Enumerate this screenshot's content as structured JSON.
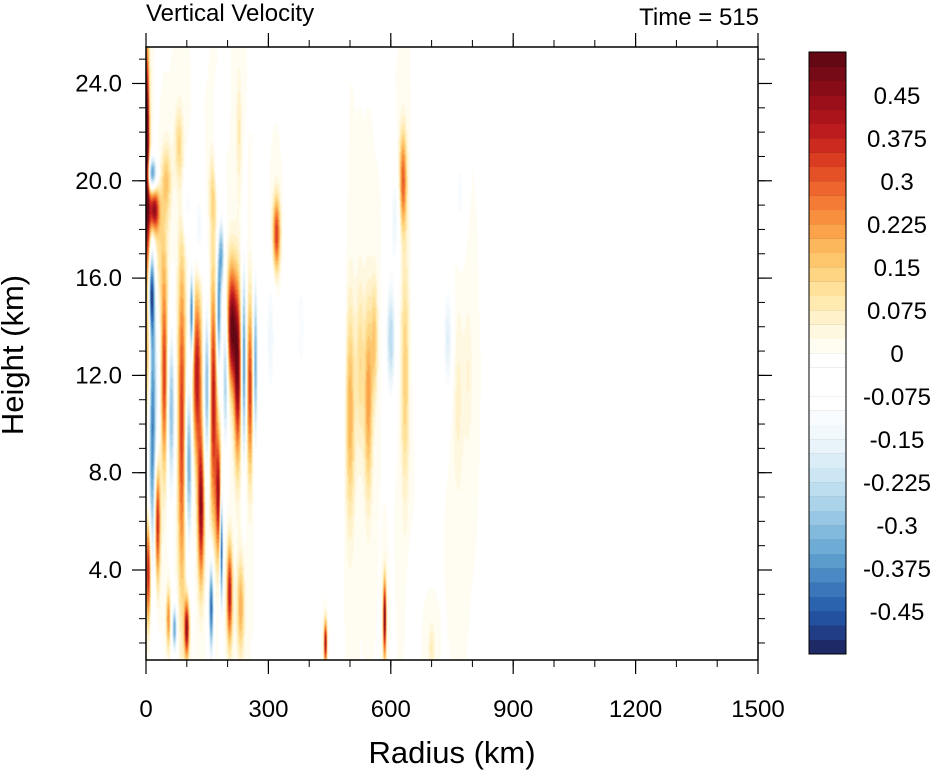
{
  "chart_data": {
    "type": "heatmap",
    "title": "Vertical Velocity",
    "subtitle": "Time = 515",
    "xlabel": "Radius (km)",
    "ylabel": "Height (km)",
    "xlim": [
      0,
      1500
    ],
    "ylim": [
      0.3,
      25.5
    ],
    "x_ticks": [
      0,
      300,
      600,
      900,
      1200,
      1500
    ],
    "x_tick_labels": [
      "0",
      "300",
      "600",
      "900",
      "1200",
      "1500"
    ],
    "x_minor_step": 100,
    "y_ticks": [
      4,
      8,
      12,
      16,
      20,
      24
    ],
    "y_tick_labels": [
      "4.0",
      "8.0",
      "12.0",
      "16.0",
      "20.0",
      "24.0"
    ],
    "y_minor_step": 1,
    "colorbar": {
      "levels": [
        -0.525,
        -0.5,
        -0.475,
        -0.45,
        -0.425,
        -0.4,
        -0.375,
        -0.35,
        -0.325,
        -0.3,
        -0.275,
        -0.25,
        -0.225,
        -0.2,
        -0.175,
        -0.15,
        -0.125,
        -0.1,
        -0.075,
        -0.05,
        -0.025,
        0,
        0.025,
        0.05,
        0.075,
        0.1,
        0.125,
        0.15,
        0.175,
        0.2,
        0.225,
        0.25,
        0.275,
        0.3,
        0.325,
        0.35,
        0.375,
        0.4,
        0.425,
        0.45,
        0.475,
        0.5,
        0.525
      ],
      "labels": [
        "0.45",
        "0.375",
        "0.3",
        "0.225",
        "0.15",
        "0.075",
        "0",
        "-0.075",
        "-0.15",
        "-0.225",
        "-0.3",
        "-0.375",
        "-0.45"
      ],
      "label_values": [
        0.45,
        0.375,
        0.3,
        0.225,
        0.15,
        0.075,
        0,
        -0.075,
        -0.15,
        -0.225,
        -0.3,
        -0.375,
        -0.45
      ],
      "colors": [
        "#1e2a66",
        "#203d86",
        "#2351a0",
        "#2c63ae",
        "#3a76b9",
        "#4a89c3",
        "#5b9ccd",
        "#6eacd6",
        "#82badd",
        "#97c7e4",
        "#abd3ea",
        "#bddeef",
        "#cde6f3",
        "#dbeef7",
        "#e8f4fa",
        "#f2f9fc",
        "#f8fcfe",
        "#ffffff",
        "#ffffff",
        "#ffffff",
        "#ffffff",
        "#fffdf2",
        "#fff8e0",
        "#fff2ca",
        "#ffeab1",
        "#ffe199",
        "#fed583",
        "#fdc66d",
        "#fcb65b",
        "#fba34b",
        "#f88f3e",
        "#f47b35",
        "#ee662d",
        "#e45126",
        "#d93c21",
        "#cc2a1f",
        "#bd1c1e",
        "#ac141c",
        "#9a0f1a",
        "#880c18",
        "#760a16",
        "#640814"
      ]
    },
    "features": [
      {
        "r": 5,
        "z": 14.0,
        "w": 0.5,
        "rw": 8,
        "zh": 8.0
      },
      {
        "r": 12,
        "z": 10.0,
        "w": -0.5,
        "rw": 14,
        "zh": 6.5
      },
      {
        "r": 12,
        "z": 15.5,
        "w": -0.45,
        "rw": 9,
        "zh": 1.8
      },
      {
        "r": 6,
        "z": 4.0,
        "w": 0.45,
        "rw": 7,
        "zh": 2.2
      },
      {
        "r": 3,
        "z": 22.0,
        "w": 0.45,
        "rw": 4,
        "zh": 3.5
      },
      {
        "r": 14,
        "z": 20.3,
        "w": -0.4,
        "rw": 12,
        "zh": 0.7
      },
      {
        "r": 20,
        "z": 18.8,
        "w": 0.45,
        "rw": 12,
        "zh": 0.9
      },
      {
        "r": 30,
        "z": 17.0,
        "w": 0.12,
        "rw": 22,
        "zh": 2.5
      },
      {
        "r": 28,
        "z": 6.0,
        "w": 0.45,
        "rw": 7,
        "zh": 2.5
      },
      {
        "r": 45,
        "z": 12.0,
        "w": 0.35,
        "rw": 8,
        "zh": 4.0
      },
      {
        "r": 62,
        "z": 10.5,
        "w": -0.3,
        "rw": 9,
        "zh": 3.5
      },
      {
        "r": 88,
        "z": 10.0,
        "w": 0.35,
        "rw": 10,
        "zh": 7.0
      },
      {
        "r": 105,
        "z": 8.5,
        "w": -0.35,
        "rw": 9,
        "zh": 3.5
      },
      {
        "r": 112,
        "z": 14.5,
        "w": -0.45,
        "rw": 5,
        "zh": 1.8
      },
      {
        "r": 125,
        "z": 12.0,
        "w": 0.4,
        "rw": 12,
        "zh": 3.5
      },
      {
        "r": 135,
        "z": 6.5,
        "w": 0.45,
        "rw": 8,
        "zh": 3.0
      },
      {
        "r": 150,
        "z": 11.5,
        "w": -0.35,
        "rw": 8,
        "zh": 3.5
      },
      {
        "r": 165,
        "z": 11.0,
        "w": 0.4,
        "rw": 10,
        "zh": 5.0
      },
      {
        "r": 178,
        "z": 14.5,
        "w": -0.4,
        "rw": 6,
        "zh": 2.5
      },
      {
        "r": 185,
        "z": 5.0,
        "w": -0.5,
        "rw": 4,
        "zh": 2.5
      },
      {
        "r": 178,
        "z": 7.0,
        "w": 0.4,
        "rw": 7,
        "zh": 2.5
      },
      {
        "r": 195,
        "z": 12.0,
        "w": -0.3,
        "rw": 7,
        "zh": 3.0
      },
      {
        "r": 210,
        "z": 14.0,
        "w": 0.5,
        "rw": 12,
        "zh": 2.5
      },
      {
        "r": 225,
        "z": 12.0,
        "w": 0.45,
        "rw": 9,
        "zh": 3.5
      },
      {
        "r": 240,
        "z": 12.5,
        "w": -0.4,
        "rw": 6,
        "zh": 4.0
      },
      {
        "r": 255,
        "z": 11.5,
        "w": 0.35,
        "rw": 8,
        "zh": 3.5
      },
      {
        "r": 268,
        "z": 12.5,
        "w": -0.35,
        "rw": 6,
        "zh": 3.5
      },
      {
        "r": 160,
        "z": 2.5,
        "w": -0.45,
        "rw": 6,
        "zh": 2.0
      },
      {
        "r": 205,
        "z": 3.0,
        "w": 0.4,
        "rw": 7,
        "zh": 2.0
      },
      {
        "r": 232,
        "z": 2.5,
        "w": 0.2,
        "rw": 9,
        "zh": 2.0
      },
      {
        "r": 100,
        "z": 1.6,
        "w": 0.45,
        "rw": 6,
        "zh": 1.2
      },
      {
        "r": 70,
        "z": 1.6,
        "w": -0.35,
        "rw": 6,
        "zh": 1.0
      },
      {
        "r": 55,
        "z": 2.0,
        "w": 0.25,
        "rw": 5,
        "zh": 1.2
      },
      {
        "r": 50,
        "z": 20.0,
        "w": 0.15,
        "rw": 12,
        "zh": 1.5
      },
      {
        "r": 80,
        "z": 21.5,
        "w": 0.12,
        "rw": 10,
        "zh": 1.5
      },
      {
        "r": 100,
        "z": 19.0,
        "w": -0.12,
        "rw": 12,
        "zh": 1.5
      },
      {
        "r": 130,
        "z": 18.0,
        "w": -0.15,
        "rw": 12,
        "zh": 1.8
      },
      {
        "r": 165,
        "z": 19.5,
        "w": 0.12,
        "rw": 10,
        "zh": 1.8
      },
      {
        "r": 175,
        "z": 20.8,
        "w": -0.12,
        "rw": 8,
        "zh": 1.5
      },
      {
        "r": 185,
        "z": 17.0,
        "w": -0.3,
        "rw": 7,
        "zh": 1.5
      },
      {
        "r": 228,
        "z": 22.0,
        "w": 0.08,
        "rw": 7,
        "zh": 2.5
      },
      {
        "r": 320,
        "z": 17.8,
        "w": 0.35,
        "rw": 9,
        "zh": 1.5
      },
      {
        "r": 305,
        "z": 13.5,
        "w": -0.15,
        "rw": 12,
        "zh": 3.0
      },
      {
        "r": 345,
        "z": 11.0,
        "w": -0.1,
        "rw": 14,
        "zh": 5.0
      },
      {
        "r": 380,
        "z": 14.0,
        "w": -0.12,
        "rw": 14,
        "zh": 3.0
      },
      {
        "r": 410,
        "z": 8.5,
        "w": -0.08,
        "rw": 15,
        "zh": 4.0
      },
      {
        "r": 420,
        "z": 16.5,
        "w": -0.08,
        "rw": 15,
        "zh": 3.0
      },
      {
        "r": 440,
        "z": 1.0,
        "w": 0.45,
        "rw": 4,
        "zh": 0.9
      },
      {
        "r": 460,
        "z": 6.0,
        "w": -0.08,
        "rw": 14,
        "zh": 4.0
      },
      {
        "r": 480,
        "z": 12.5,
        "w": -0.08,
        "rw": 12,
        "zh": 5.0
      },
      {
        "r": 500,
        "z": 10.5,
        "w": 0.2,
        "rw": 12,
        "zh": 4.5
      },
      {
        "r": 525,
        "z": 12.5,
        "w": 0.12,
        "rw": 10,
        "zh": 3.5
      },
      {
        "r": 545,
        "z": 11.0,
        "w": 0.22,
        "rw": 10,
        "zh": 4.0
      },
      {
        "r": 560,
        "z": 13.5,
        "w": 0.15,
        "rw": 8,
        "zh": 2.5
      },
      {
        "r": 585,
        "z": 2.0,
        "w": 0.5,
        "rw": 4,
        "zh": 1.6
      },
      {
        "r": 600,
        "z": 13.5,
        "w": -0.25,
        "rw": 12,
        "zh": 2.5
      },
      {
        "r": 610,
        "z": 18.5,
        "w": -0.15,
        "rw": 12,
        "zh": 2.0
      },
      {
        "r": 630,
        "z": 20.0,
        "w": 0.3,
        "rw": 9,
        "zh": 2.0
      },
      {
        "r": 635,
        "z": 12.0,
        "w": 0.15,
        "rw": 10,
        "zh": 5.0
      },
      {
        "r": 650,
        "z": 2.0,
        "w": -0.1,
        "rw": 8,
        "zh": 2.0
      },
      {
        "r": 665,
        "z": 16.5,
        "w": -0.1,
        "rw": 10,
        "zh": 4.0
      },
      {
        "r": 700,
        "z": 13.0,
        "w": -0.08,
        "rw": 14,
        "zh": 4.0
      },
      {
        "r": 740,
        "z": 13.5,
        "w": -0.18,
        "rw": 12,
        "zh": 2.5
      },
      {
        "r": 770,
        "z": 19.5,
        "w": -0.12,
        "rw": 10,
        "zh": 2.0
      },
      {
        "r": 765,
        "z": 11.0,
        "w": 0.06,
        "rw": 14,
        "zh": 4.0
      },
      {
        "r": 790,
        "z": 12.0,
        "w": 0.05,
        "rw": 10,
        "zh": 3.0
      },
      {
        "r": 850,
        "z": 17.0,
        "w": -0.06,
        "rw": 12,
        "zh": 2.5
      },
      {
        "r": 700,
        "z": 0.8,
        "w": 0.08,
        "rw": 8,
        "zh": 1.0
      }
    ]
  }
}
